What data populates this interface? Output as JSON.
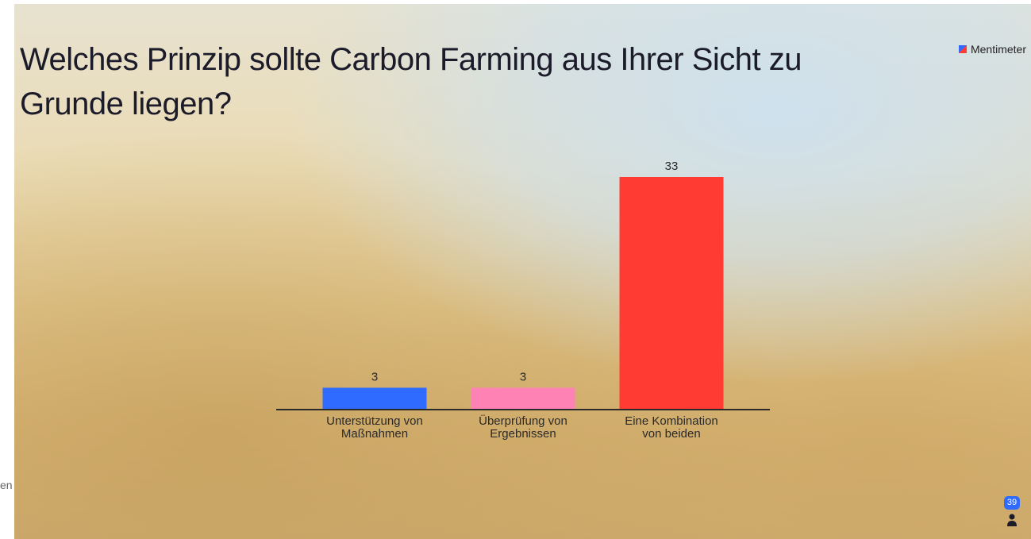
{
  "chart_data": {
    "type": "bar",
    "title": "Welches Prinzip sollte Carbon Farming aus Ihrer Sicht zu Grunde liegen?",
    "categories": [
      "Unterstützung von Maßnahmen",
      "Überprüfung von Ergebnissen",
      "Eine Kombination von beiden"
    ],
    "values": [
      3,
      3,
      33
    ],
    "colors": [
      "#2f6bff",
      "#ff82b4",
      "#ff3b33"
    ]
  },
  "brand": "Mentimeter",
  "participants": 39,
  "edge_text": "en"
}
